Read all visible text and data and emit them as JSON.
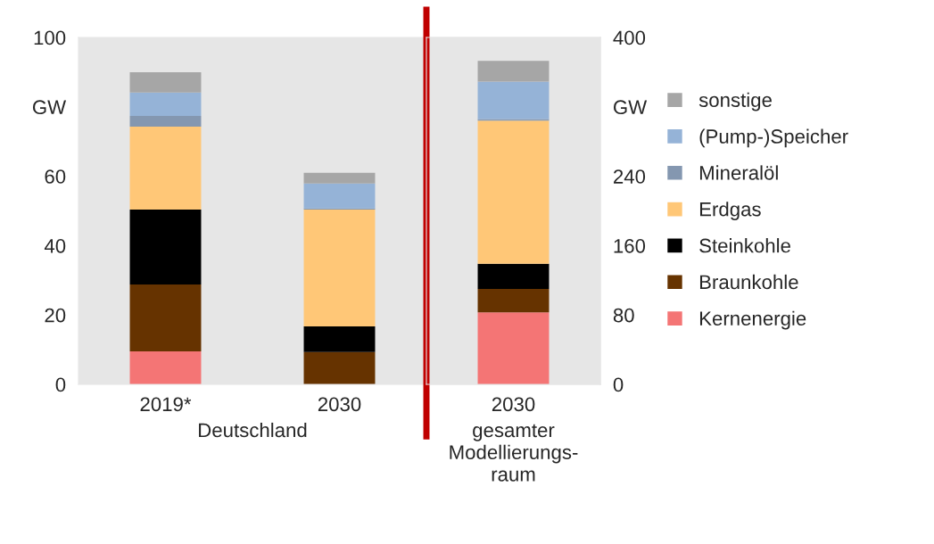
{
  "chart_data": [
    {
      "type": "bar",
      "stacked": true,
      "categories": [
        "2019*",
        "2030"
      ],
      "xlabel": "Deutschland",
      "series": [
        {
          "color": "#f47575",
          "values": [
            9.5,
            0
          ]
        },
        {
          "color": "#663300",
          "values": [
            19.3,
            9.3
          ]
        },
        {
          "color": "#000000",
          "values": [
            21.6,
            7.4
          ]
        },
        {
          "color": "#ffc777",
          "values": [
            23.9,
            33.7
          ]
        },
        {
          "color": "#8497b0",
          "values": [
            3.1,
            0.3
          ]
        },
        {
          "color": "#95b3d7",
          "values": [
            6.7,
            7.2
          ]
        },
        {
          "color": "#a6a6a6",
          "values": [
            5.9,
            3.1
          ]
        }
      ],
      "ylim": [
        0,
        100
      ],
      "yticks": [
        0,
        20,
        40,
        60,
        {
          "value": 80,
          "label": "GW"
        },
        100
      ],
      "grid": false
    },
    {
      "type": "bar",
      "stacked": true,
      "categories": [
        "2030"
      ],
      "xlabel": "gesamter\nModellierungs-\nraum",
      "series": [
        {
          "name": "Kernenergie",
          "color": "#f47575",
          "axis": "y2",
          "values": [
            83
          ]
        },
        {
          "name": "Braunkohle",
          "color": "#663300",
          "axis": "y2",
          "values": [
            27
          ]
        },
        {
          "name": "Steinkohle",
          "color": "#000000",
          "axis": "y2",
          "values": [
            29
          ]
        },
        {
          "name": "Erdgas",
          "color": "#ffc777",
          "axis": "y2",
          "values": [
            165
          ]
        },
        {
          "name": "Mineralöl",
          "color": "#8497b0",
          "axis": "y2",
          "values": [
            2
          ]
        },
        {
          "name": "(Pump-)Speicher",
          "color": "#95b3d7",
          "axis": "y2",
          "values": [
            43
          ]
        },
        {
          "name": "sonstige",
          "color": "#a6a6a6",
          "axis": "y2",
          "values": [
            24
          ]
        }
      ],
      "y2lim": [
        0,
        400
      ],
      "y2ticks": [
        0,
        80,
        160,
        240,
        {
          "value": 320,
          "label": "GW"
        },
        400
      ],
      "grid": false,
      "legend": "right"
    }
  ]
}
